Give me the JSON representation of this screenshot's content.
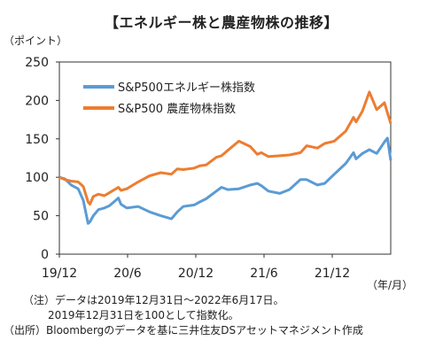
{
  "title": "【エネルギー株と農産物株の推移】",
  "y_unit": "（ポイント）",
  "x_unit": "（年/月）",
  "notes": {
    "line1": "（注）データは2019年12月31日～2022年6月17日。",
    "line2": "2019年12月31日を100として指数化。",
    "source": "（出所）Bloombergのデータを基に三井住友DSアセットマネジメント作成"
  },
  "chart_data": {
    "type": "line",
    "x_ticks": [
      "19/12",
      "20/6",
      "20/12",
      "21/6",
      "21/12"
    ],
    "y_ticks": [
      0,
      50,
      100,
      150,
      200,
      250
    ],
    "ylim": [
      0,
      250
    ],
    "xlim": [
      "2019-12-31",
      "2022-06-17"
    ],
    "grid": false,
    "legend": "top-left",
    "series": [
      {
        "name": "S&P500エネルギー株指数",
        "color": "#5b9bd5",
        "points": [
          [
            "2019-12-31",
            100
          ],
          [
            "2020-01-15",
            98
          ],
          [
            "2020-02-01",
            90
          ],
          [
            "2020-02-20",
            85
          ],
          [
            "2020-03-05",
            70
          ],
          [
            "2020-03-18",
            40
          ],
          [
            "2020-03-23",
            42
          ],
          [
            "2020-04-01",
            50
          ],
          [
            "2020-04-15",
            58
          ],
          [
            "2020-05-01",
            60
          ],
          [
            "2020-05-15",
            63
          ],
          [
            "2020-06-08",
            73
          ],
          [
            "2020-06-15",
            65
          ],
          [
            "2020-07-01",
            60
          ],
          [
            "2020-08-01",
            62
          ],
          [
            "2020-09-01",
            55
          ],
          [
            "2020-10-01",
            50
          ],
          [
            "2020-10-30",
            46
          ],
          [
            "2020-11-15",
            55
          ],
          [
            "2020-12-01",
            62
          ],
          [
            "2020-12-31",
            64
          ],
          [
            "2021-01-15",
            68
          ],
          [
            "2021-02-01",
            72
          ],
          [
            "2021-03-01",
            82
          ],
          [
            "2021-03-15",
            87
          ],
          [
            "2021-04-01",
            84
          ],
          [
            "2021-05-01",
            85
          ],
          [
            "2021-06-01",
            90
          ],
          [
            "2021-06-20",
            92
          ],
          [
            "2021-07-01",
            89
          ],
          [
            "2021-07-20",
            82
          ],
          [
            "2021-08-20",
            79
          ],
          [
            "2021-09-15",
            84
          ],
          [
            "2021-10-15",
            97
          ],
          [
            "2021-11-01",
            97
          ],
          [
            "2021-11-30",
            90
          ],
          [
            "2021-12-20",
            92
          ],
          [
            "2022-01-15",
            104
          ],
          [
            "2022-02-15",
            118
          ],
          [
            "2022-03-08",
            132
          ],
          [
            "2022-03-15",
            124
          ],
          [
            "2022-04-01",
            131
          ],
          [
            "2022-04-20",
            136
          ],
          [
            "2022-05-10",
            131
          ],
          [
            "2022-05-31",
            146
          ],
          [
            "2022-06-08",
            151
          ],
          [
            "2022-06-17",
            122
          ]
        ]
      },
      {
        "name": "S&P500 農産物株指数",
        "color": "#ed7d31",
        "points": [
          [
            "2019-12-31",
            100
          ],
          [
            "2020-01-15",
            97
          ],
          [
            "2020-02-01",
            95
          ],
          [
            "2020-02-20",
            94
          ],
          [
            "2020-03-05",
            88
          ],
          [
            "2020-03-18",
            68
          ],
          [
            "2020-03-23",
            65
          ],
          [
            "2020-04-01",
            75
          ],
          [
            "2020-04-15",
            78
          ],
          [
            "2020-05-01",
            76
          ],
          [
            "2020-05-15",
            80
          ],
          [
            "2020-06-08",
            87
          ],
          [
            "2020-06-15",
            83
          ],
          [
            "2020-07-01",
            85
          ],
          [
            "2020-08-01",
            94
          ],
          [
            "2020-09-01",
            102
          ],
          [
            "2020-10-01",
            106
          ],
          [
            "2020-10-30",
            104
          ],
          [
            "2020-11-15",
            111
          ],
          [
            "2020-12-01",
            110
          ],
          [
            "2020-12-31",
            112
          ],
          [
            "2021-01-15",
            115
          ],
          [
            "2021-02-01",
            116
          ],
          [
            "2021-03-01",
            126
          ],
          [
            "2021-03-15",
            128
          ],
          [
            "2021-04-01",
            135
          ],
          [
            "2021-05-01",
            147
          ],
          [
            "2021-06-01",
            140
          ],
          [
            "2021-06-20",
            130
          ],
          [
            "2021-07-01",
            132
          ],
          [
            "2021-07-20",
            127
          ],
          [
            "2021-08-20",
            128
          ],
          [
            "2021-09-15",
            129
          ],
          [
            "2021-10-15",
            132
          ],
          [
            "2021-11-01",
            141
          ],
          [
            "2021-11-30",
            138
          ],
          [
            "2021-12-20",
            144
          ],
          [
            "2022-01-15",
            147
          ],
          [
            "2022-02-15",
            160
          ],
          [
            "2022-03-08",
            178
          ],
          [
            "2022-03-15",
            172
          ],
          [
            "2022-04-01",
            186
          ],
          [
            "2022-04-20",
            211
          ],
          [
            "2022-05-10",
            188
          ],
          [
            "2022-05-31",
            197
          ],
          [
            "2022-06-08",
            184
          ],
          [
            "2022-06-17",
            170
          ]
        ]
      }
    ]
  }
}
